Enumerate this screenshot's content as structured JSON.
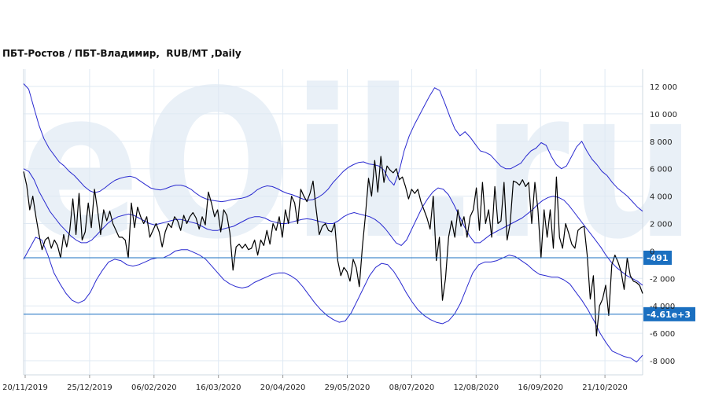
{
  "chart_data": {
    "type": "line",
    "title": "ПБТ-Ростов / ПБТ-Владимир,  RUB/MT ,Daily",
    "watermark": "eOil.ru",
    "y_ticks": [
      12000,
      10000,
      8000,
      6000,
      4000,
      2000,
      0,
      -2000,
      -4000,
      -6000,
      -8000
    ],
    "y_tick_labels": [
      "12 000",
      "10 000",
      "8 000",
      "6 000",
      "4 000",
      "2 000",
      "0",
      "-2 000",
      "-4 000",
      "-6 000",
      "-8 000"
    ],
    "ylim": [
      -9000,
      13000
    ],
    "x_ticks": [
      "20/11/2019",
      "25/12/2019",
      "06/02/2020",
      "16/03/2020",
      "20/04/2020",
      "29/05/2020",
      "08/07/2020",
      "12/08/2020",
      "16/09/2020",
      "21/10/2020"
    ],
    "grid": true,
    "colors": {
      "price": "#000000",
      "bands": "#2a2ad0",
      "hlines": "#1a6fc0",
      "badge_bg": "#1a6fc0",
      "grid": "#dfe9f3",
      "watermark": "#cfe0ef"
    },
    "hlines": [
      {
        "value": -491,
        "label": "-491"
      },
      {
        "value": -4610,
        "label": "-4.61e+3"
      }
    ],
    "series": [
      {
        "role": "price",
        "values": [
          5800,
          4800,
          3000,
          4000,
          2500,
          1200,
          100,
          800,
          1000,
          200,
          800,
          400,
          -500,
          1200,
          300,
          1500,
          3800,
          1200,
          4200,
          800,
          1400,
          3500,
          1700,
          4500,
          3000,
          1200,
          3000,
          2200,
          2900,
          2000,
          1500,
          1000,
          1000,
          800,
          -500,
          3500,
          1700,
          3200,
          2500,
          2000,
          2500,
          1000,
          1500,
          2000,
          1400,
          300,
          1400,
          2000,
          1700,
          2500,
          2200,
          1500,
          2600,
          2000,
          2500,
          2800,
          2400,
          1600,
          2500,
          1900,
          4300,
          3500,
          2500,
          3000,
          1400,
          3000,
          2600,
          1300,
          -1400,
          300,
          500,
          200,
          500,
          100,
          200,
          800,
          -300,
          800,
          400,
          1500,
          500,
          2000,
          1500,
          2500,
          1000,
          3000,
          2000,
          4000,
          3500,
          2000,
          4500,
          4000,
          3600,
          4200,
          5100,
          3000,
          1200,
          1800,
          2000,
          1500,
          1400,
          2000,
          -700,
          -1800,
          -1200,
          -1500,
          -2200,
          -600,
          -1200,
          -2600,
          300,
          2600,
          5300,
          4000,
          6600,
          4300,
          6900,
          5000,
          6200,
          5900,
          5700,
          6000,
          5200,
          5400,
          4700,
          3800,
          4500,
          4200,
          4500,
          3600,
          3000,
          2400,
          1600,
          4000,
          -700,
          1000,
          -3600,
          -2000,
          1000,
          2200,
          1000,
          3000,
          1800,
          2500,
          1000,
          2500,
          3000,
          4600,
          1500,
          5000,
          2000,
          3000,
          1000,
          4700,
          2000,
          2200,
          5000,
          800,
          2000,
          5100,
          5000,
          4800,
          5200,
          4700,
          5000,
          2000,
          5000,
          3000,
          -500,
          3000,
          1000,
          3000,
          200,
          5400,
          1000,
          200,
          2000,
          1300,
          500,
          200,
          1500,
          1700,
          1800,
          -300,
          -3500,
          -1800,
          -6200,
          -4000,
          -3500,
          -2500,
          -4700,
          -1000,
          -300,
          -800,
          -1500,
          -2800,
          -500,
          -1800,
          -2200,
          -2300,
          -2500,
          -3100
        ]
      },
      {
        "role": "upper_band",
        "values": [
          12200,
          11800,
          10500,
          9200,
          8200,
          7500,
          7000,
          6500,
          6200,
          5800,
          5500,
          5100,
          4700,
          4400,
          4250,
          4350,
          4600,
          4900,
          5150,
          5300,
          5400,
          5450,
          5350,
          5100,
          4850,
          4600,
          4500,
          4450,
          4550,
          4700,
          4800,
          4800,
          4700,
          4500,
          4200,
          3950,
          3800,
          3700,
          3650,
          3600,
          3650,
          3750,
          3800,
          3850,
          3950,
          4150,
          4450,
          4650,
          4750,
          4700,
          4550,
          4350,
          4200,
          4100,
          3950,
          3800,
          3700,
          3750,
          3900,
          4150,
          4500,
          5000,
          5400,
          5800,
          6100,
          6300,
          6450,
          6500,
          6350,
          6300,
          6200,
          5900,
          5200,
          4800,
          5800,
          7300,
          8400,
          9200,
          9900,
          10600,
          11300,
          11900,
          11700,
          10800,
          9800,
          8900,
          8400,
          8700,
          8300,
          7800,
          7300,
          7200,
          7000,
          6600,
          6200,
          6000,
          6000,
          6200,
          6400,
          6900,
          7300,
          7500,
          7900,
          7700,
          6900,
          6300,
          6000,
          6200,
          6900,
          7600,
          8000,
          7300,
          6700,
          6300,
          5800,
          5500,
          5000,
          4600,
          4300,
          4000,
          3600,
          3200,
          2900
        ]
      },
      {
        "role": "mid_band",
        "values": [
          6000,
          5800,
          5200,
          4300,
          3600,
          2900,
          2400,
          1900,
          1500,
          1100,
          800,
          600,
          600,
          800,
          1200,
          1600,
          2000,
          2300,
          2500,
          2600,
          2700,
          2600,
          2400,
          2200,
          2000,
          1900,
          2000,
          2100,
          2200,
          2300,
          2300,
          2200,
          2100,
          2000,
          1800,
          1600,
          1500,
          1500,
          1600,
          1700,
          1800,
          2000,
          2200,
          2400,
          2500,
          2500,
          2400,
          2200,
          2100,
          2000,
          2000,
          2100,
          2200,
          2300,
          2350,
          2300,
          2200,
          2100,
          2000,
          2000,
          2200,
          2500,
          2700,
          2800,
          2700,
          2600,
          2500,
          2300,
          2000,
          1600,
          1100,
          600,
          400,
          800,
          1600,
          2400,
          3200,
          3800,
          4300,
          4600,
          4500,
          4100,
          3400,
          2600,
          1800,
          1100,
          600,
          600,
          900,
          1200,
          1400,
          1600,
          1800,
          2000,
          2200,
          2400,
          2700,
          3000,
          3400,
          3700,
          3900,
          4000,
          3900,
          3700,
          3300,
          2800,
          2300,
          1800,
          1300,
          800,
          300,
          -300,
          -800,
          -1200,
          -1500,
          -1800,
          -2000,
          -2200,
          -2500
        ]
      },
      {
        "role": "lower_band",
        "values": [
          -600,
          200,
          1000,
          800,
          -300,
          -1600,
          -2400,
          -3100,
          -3600,
          -3800,
          -3600,
          -3000,
          -2100,
          -1400,
          -800,
          -600,
          -700,
          -1000,
          -1100,
          -1000,
          -800,
          -600,
          -500,
          -500,
          -300,
          0,
          100,
          100,
          -100,
          -300,
          -600,
          -1100,
          -1600,
          -2100,
          -2400,
          -2600,
          -2700,
          -2600,
          -2300,
          -2100,
          -1900,
          -1700,
          -1600,
          -1600,
          -1800,
          -2100,
          -2600,
          -3200,
          -3800,
          -4300,
          -4700,
          -5000,
          -5200,
          -5100,
          -4500,
          -3600,
          -2700,
          -1800,
          -1200,
          -900,
          -1000,
          -1500,
          -2200,
          -3000,
          -3700,
          -4300,
          -4700,
          -5000,
          -5200,
          -5300,
          -5100,
          -4600,
          -3800,
          -2700,
          -1600,
          -1000,
          -800,
          -800,
          -700,
          -500,
          -300,
          -400,
          -700,
          -1000,
          -1400,
          -1700,
          -1800,
          -1900,
          -1900,
          -2100,
          -2400,
          -3000,
          -3600,
          -4300,
          -5100,
          -6000,
          -6700,
          -7300,
          -7500,
          -7700,
          -7800,
          -8100,
          -7600
        ]
      }
    ]
  }
}
